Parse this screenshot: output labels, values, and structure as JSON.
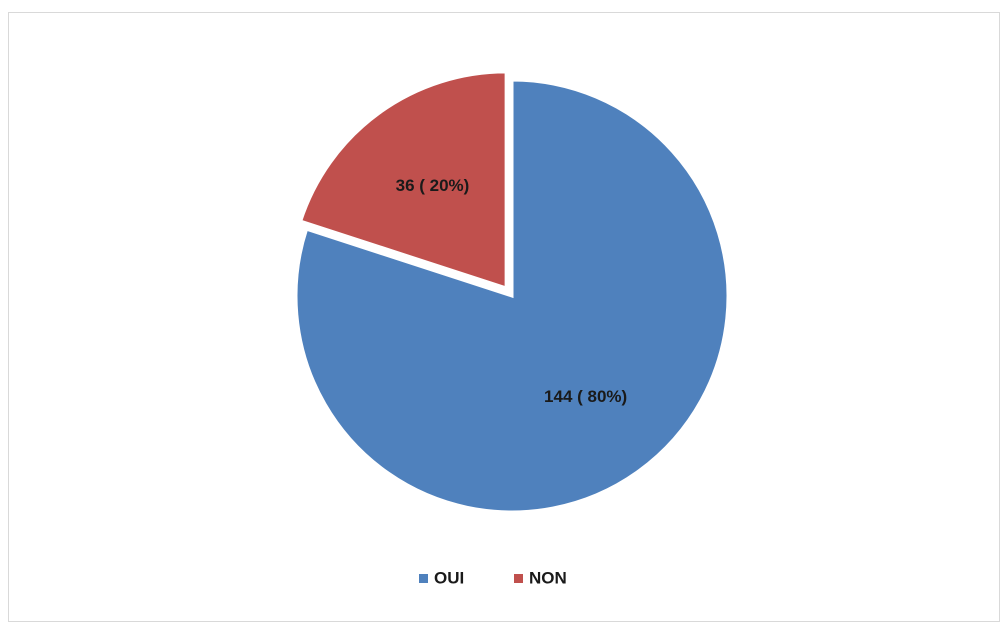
{
  "chart_data": {
    "type": "pie",
    "categories": [
      "OUI",
      "NON"
    ],
    "values": [
      144,
      36
    ],
    "percents": [
      80,
      20
    ],
    "data_labels": [
      "144 ( 80%)",
      "36 ( 20%)"
    ],
    "colors": [
      "#4F81BD",
      "#C0504D"
    ],
    "legend_position": "bottom",
    "exploded_slice": "NON",
    "title": ""
  }
}
